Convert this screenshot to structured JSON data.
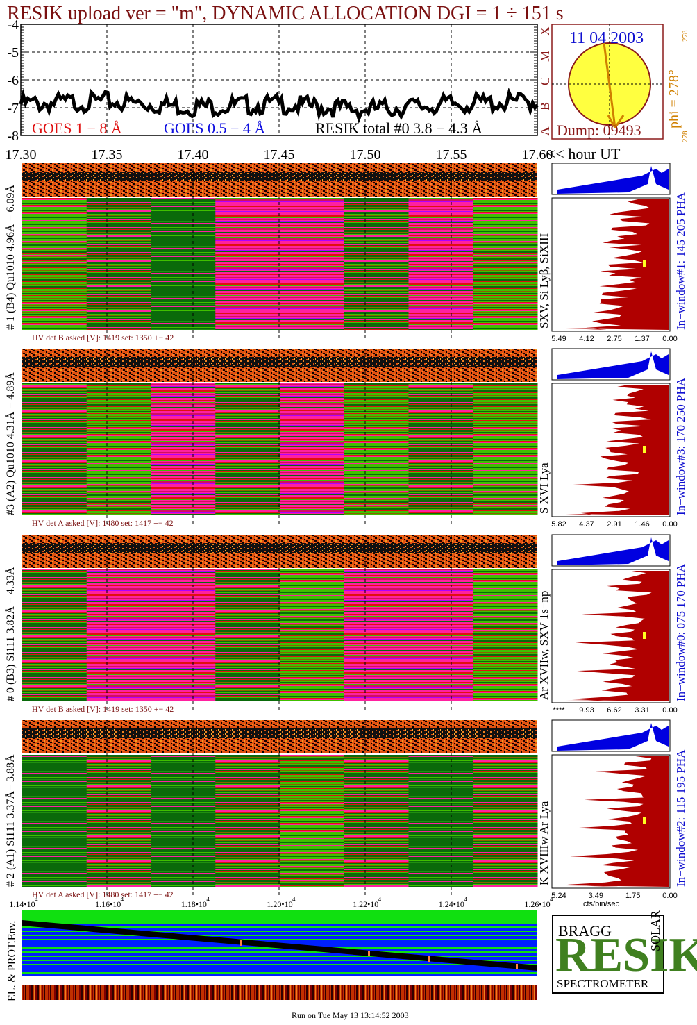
{
  "header": {
    "title": "RESIK upload ver = \"m\", DYNAMIC ALLOCATION  DGI =   1 ÷ 151 s"
  },
  "colors": {
    "title": "#7a1010",
    "goes_long": "#e01010",
    "goes_short": "#1010e0",
    "resik_total": "#000000",
    "date_blue": "#1010d0",
    "orange_label": "#d08000",
    "sun_fill": "#ffff40",
    "sun_rim": "#8b1a1a",
    "pha_blue": "#0000e0",
    "pha_red": "#b00000",
    "marker_yellow": "#ffff20",
    "green_dark": "#0a6a0a",
    "green_light": "#40c000",
    "magenta": "#ff20a0",
    "purple": "#b000ff",
    "red_band": "#e01010",
    "env_blue": "#0020ff",
    "env_green": "#10e010",
    "hv_text": "#7a1010",
    "logo_green": "#408020"
  },
  "goes": {
    "y_ticks": [
      "-4",
      "-5",
      "-6",
      "-7",
      "-8"
    ],
    "level_axis": [
      "X",
      "M",
      "C",
      "B",
      "A"
    ],
    "legend_goes_long": "GOES 1 − 8 Å",
    "legend_goes_short": "GOES 0.5 − 4 Å",
    "legend_resik": "RESIK total #0  3.8 − 4.3 Å"
  },
  "sun": {
    "date": "11 04 2003",
    "phi_label": "phi = 278°",
    "phi_small_top": "278",
    "phi_small_bottom": "278",
    "dump_label": "Dump: 09493"
  },
  "time_axis": {
    "ticks": [
      "17.30",
      "17.35",
      "17.40",
      "17.45",
      "17.50",
      "17.55",
      "17.60"
    ],
    "unit_label": "<< hour UT"
  },
  "panels": [
    {
      "left_label": "# 1 (B4) Qu1010 4.96Å − 6.09Å",
      "line_label": "SXV, Si Lyβ, SiXIII",
      "window_label": "In−window#1:  145 205 PHA",
      "hv": "HV det B asked [V]:  1419 set:  1350 +−  42",
      "pha_ticks": [
        "5.49",
        "4.12",
        "2.75",
        "1.37",
        "0.00"
      ]
    },
    {
      "left_label": "#3 (A2) Qu1010  4.31Å − 4.89Å",
      "line_label": "S XVI Lya",
      "window_label": "In−window#3:  170 250 PHA",
      "hv": "HV det A asked [V]:  1480 set:  1417 +−  42",
      "pha_ticks": [
        "5.82",
        "4.37",
        "2.91",
        "1.46",
        "0.00"
      ]
    },
    {
      "left_label": "# 0 (B3) Si111  3.82Å − 4.33Å",
      "line_label": "Ar XVIIw,  SXV 1s−np",
      "window_label": "In−window#0:  075 170 PHA",
      "hv": "HV det B asked [V]:  1419 set:  1350 +−  42",
      "pha_ticks": [
        "****",
        "9.93",
        "6.62",
        "3.31",
        "0.00"
      ]
    },
    {
      "left_label": "# 2 (A1) Si111  3.37Å− 3.88Å",
      "line_label": "K XVIIIw  Ar Lya",
      "window_label": "In−window#2:  115 195 PHA",
      "hv": "HV det A asked [V]:  1480 set:  1417 +−  42",
      "pha_ticks": [
        "5.24",
        "3.49",
        "1.75",
        "0.00"
      ],
      "pha_unit": "cts/bin/sec"
    }
  ],
  "bottom_axis": {
    "ticks": [
      "1.14•10",
      "1.16•10",
      "1.18•10",
      "1.20•10",
      "1.22•10",
      "1.24•10",
      "1.26•10"
    ],
    "exponent": "4"
  },
  "env": {
    "label": "EL. & PROT.Env."
  },
  "logo": {
    "big_letters": "RESIK",
    "word_bragg": "BRAGG",
    "word_solar": "SOLAR",
    "subtitle": "SPECTROMETER"
  },
  "footer": {
    "run_text": "Run on Tue May 13 13:14:52 2003"
  },
  "chart_data": [
    {
      "type": "line",
      "title": "RESIK upload ver = \"m\", DYNAMIC ALLOCATION  DGI =   1 ÷ 151 s",
      "xlabel": "<< hour UT",
      "x": [
        17.3,
        17.35,
        17.4,
        17.45,
        17.5,
        17.55,
        17.6
      ],
      "ylim": [
        -8,
        -4
      ],
      "xlim": [
        17.3,
        17.6
      ],
      "grid": true,
      "series": [
        {
          "name": "RESIK total #0  3.8 − 4.3 Å",
          "values": [
            -6.7,
            -6.6,
            -6.8,
            -6.7,
            -6.9,
            -6.7,
            -6.6
          ]
        }
      ]
    },
    {
      "type": "heatmap",
      "title": "# 1 (B4) Qu1010 4.96Å − 6.09Å",
      "xlim": [
        17.3,
        17.6
      ]
    },
    {
      "type": "heatmap",
      "title": "#3 (A2) Qu1010  4.31Å − 4.89Å",
      "xlim": [
        17.3,
        17.6
      ]
    },
    {
      "type": "heatmap",
      "title": "# 0 (B3) Si111  3.82Å − 4.33Å",
      "xlim": [
        17.3,
        17.6
      ]
    },
    {
      "type": "heatmap",
      "title": "# 2 (A1) Si111  3.37Å− 3.88Å",
      "xlim": [
        17.3,
        17.6
      ]
    }
  ]
}
